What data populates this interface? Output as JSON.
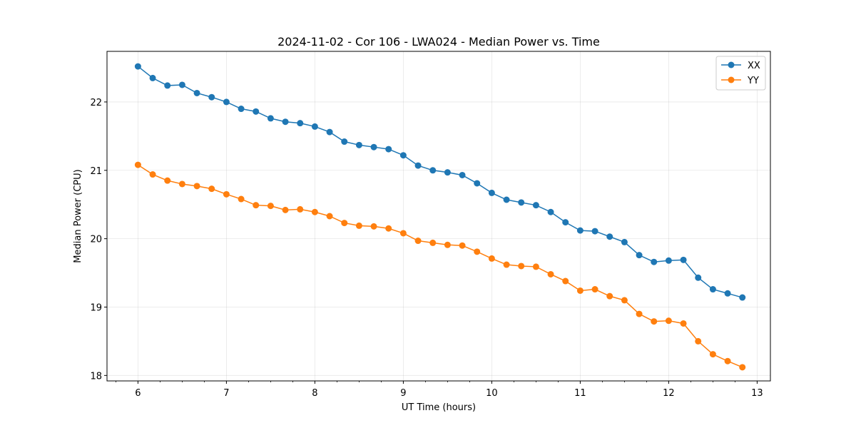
{
  "chart_data": {
    "type": "line",
    "title": "2024-11-02 - Cor 106 - LWA024 - Median Power vs. Time",
    "xlabel": "UT Time (hours)",
    "ylabel": "Median Power (CPU)",
    "xlim": [
      5.65,
      13.15
    ],
    "ylim": [
      17.92,
      22.74
    ],
    "xticks": [
      6,
      7,
      8,
      9,
      10,
      11,
      12,
      13
    ],
    "yticks": [
      18,
      19,
      20,
      21,
      22
    ],
    "grid": true,
    "legend_position": "top-right",
    "x": [
      6.0,
      6.1667,
      6.3333,
      6.5,
      6.6667,
      6.8333,
      7.0,
      7.1667,
      7.3333,
      7.5,
      7.6667,
      7.8333,
      8.0,
      8.1667,
      8.3333,
      8.5,
      8.6667,
      8.8333,
      9.0,
      9.1667,
      9.3333,
      9.5,
      9.6667,
      9.8333,
      10.0,
      10.1667,
      10.3333,
      10.5,
      10.6667,
      10.8333,
      11.0,
      11.1667,
      11.3333,
      11.5,
      11.6667,
      11.8333,
      12.0,
      12.1667,
      12.3333,
      12.5,
      12.6667,
      12.8333
    ],
    "series": [
      {
        "name": "XX",
        "color": "#1f77b4",
        "values": [
          22.52,
          22.35,
          22.24,
          22.25,
          22.13,
          22.07,
          22.0,
          21.9,
          21.86,
          21.76,
          21.71,
          21.69,
          21.64,
          21.56,
          21.42,
          21.37,
          21.34,
          21.31,
          21.22,
          21.07,
          21.0,
          20.97,
          20.93,
          20.81,
          20.67,
          20.57,
          20.53,
          20.49,
          20.39,
          20.24,
          20.12,
          20.11,
          20.03,
          19.95,
          19.76,
          19.66,
          19.68,
          19.69,
          19.43,
          19.26,
          19.2,
          19.14
        ]
      },
      {
        "name": "YY",
        "color": "#ff7f0e",
        "values": [
          21.08,
          20.94,
          20.85,
          20.8,
          20.77,
          20.73,
          20.65,
          20.58,
          20.49,
          20.48,
          20.42,
          20.43,
          20.39,
          20.33,
          20.23,
          20.19,
          20.18,
          20.15,
          20.08,
          19.97,
          19.94,
          19.91,
          19.9,
          19.81,
          19.71,
          19.62,
          19.6,
          19.59,
          19.48,
          19.38,
          19.24,
          19.26,
          19.16,
          19.1,
          18.9,
          18.79,
          18.8,
          18.76,
          18.5,
          18.31,
          18.21,
          18.12
        ]
      }
    ]
  }
}
